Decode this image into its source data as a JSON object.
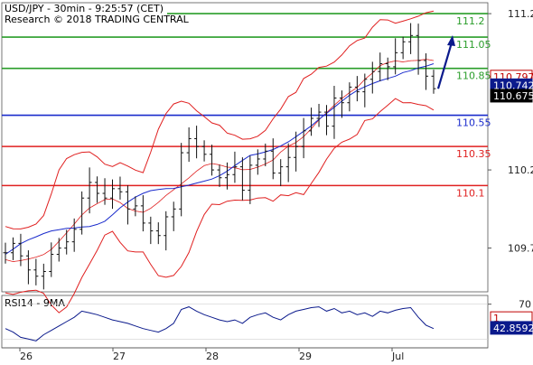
{
  "chart_data": [
    {
      "type": "candlestick",
      "header": {
        "line1": "USD/JPY - 30min - 9:25:57 (CET)",
        "line2": "Research © 2018 TRADING CENTRAL"
      },
      "y_ticks": [
        "111.2",
        "110.2",
        "109.7"
      ],
      "ylim": [
        109.42,
        111.27
      ],
      "x_ticks": [
        {
          "label": "26",
          "day": 0
        },
        {
          "label": "27",
          "day": 1
        },
        {
          "label": "28",
          "day": 2
        },
        {
          "label": "29",
          "day": 3
        },
        {
          "label": "Jul",
          "day": 4
        }
      ],
      "levels": [
        {
          "value": 111.2,
          "label": "111.2",
          "color": "#2a9d2a",
          "kind": "resistance"
        },
        {
          "value": 111.05,
          "label": "111.05",
          "color": "#2a9d2a",
          "kind": "resistance"
        },
        {
          "value": 110.85,
          "label": "110.85",
          "color": "#2a9d2a",
          "kind": "resistance"
        },
        {
          "value": 110.55,
          "label": "110.55",
          "color": "#1a2bcc",
          "kind": "pivot"
        },
        {
          "value": 110.35,
          "label": "110.35",
          "color": "#e02020",
          "kind": "support"
        },
        {
          "value": 110.1,
          "label": "110.1",
          "color": "#e02020",
          "kind": "support"
        }
      ],
      "price_boxes": [
        {
          "value": 110.797,
          "label": "110.797",
          "bg": "#ffffff",
          "fg": "#c00000",
          "border": "#c00000"
        },
        {
          "value": 110.742,
          "label": "110.742",
          "bg": "#0b1a8c",
          "fg": "#ffffff",
          "border": "#0b1a8c"
        },
        {
          "value": 110.675,
          "label": "110.675",
          "bg": "#000000",
          "fg": "#ffffff",
          "border": "#000000"
        }
      ],
      "close_series": [
        109.67,
        109.73,
        109.65,
        109.56,
        109.52,
        109.55,
        109.66,
        109.7,
        109.74,
        109.82,
        110.02,
        110.12,
        110.05,
        110.02,
        110.08,
        110.06,
        109.95,
        109.97,
        109.86,
        109.81,
        109.78,
        109.9,
        109.95,
        110.31,
        110.4,
        110.35,
        110.3,
        110.2,
        110.15,
        110.17,
        110.22,
        110.07,
        110.23,
        110.27,
        110.32,
        110.18,
        110.22,
        110.28,
        110.35,
        110.45,
        110.53,
        110.57,
        110.48,
        110.66,
        110.63,
        110.73,
        110.7,
        110.78,
        110.83,
        110.88,
        110.86,
        110.95,
        111.02,
        111.06,
        110.9,
        110.8,
        110.72
      ],
      "forecast_arrow": {
        "from": 110.72,
        "to": 111.05,
        "color": "#0b1a8c"
      },
      "rsi": {
        "title": "RSI14 - 9MA",
        "ylim": [
          20,
          80
        ],
        "y_ticks": [
          "70"
        ],
        "levels": [
          {
            "value": 70
          },
          {
            "value": 30
          }
        ],
        "series": [
          42,
          38,
          32,
          30,
          28,
          35,
          40,
          45,
          50,
          55,
          62,
          60,
          58,
          55,
          52,
          50,
          48,
          45,
          42,
          40,
          38,
          42,
          48,
          64,
          67,
          62,
          58,
          55,
          52,
          50,
          52,
          48,
          55,
          58,
          60,
          55,
          52,
          58,
          62,
          64,
          66,
          67,
          62,
          65,
          60,
          62,
          58,
          60,
          56,
          62,
          60,
          63,
          65,
          66,
          55,
          46,
          42
        ],
        "boxes": [
          {
            "value": 54,
            "label": "1",
            "bg": "#ffffff",
            "fg": "#c00000",
            "border": "#c00000"
          },
          {
            "value": 42.8592,
            "label": "42.8592",
            "bg": "#0b1a8c",
            "fg": "#ffffff",
            "border": "#0b1a8c"
          }
        ]
      }
    }
  ]
}
